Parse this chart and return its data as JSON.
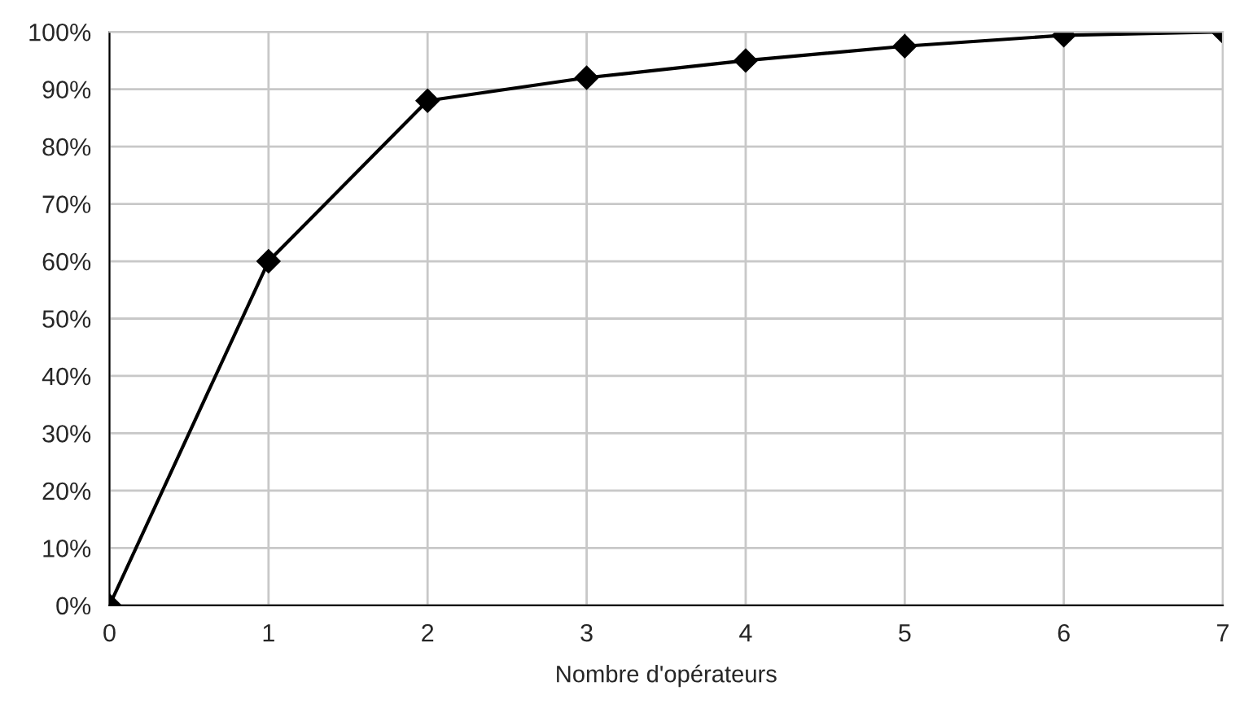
{
  "chart_data": {
    "type": "line",
    "xlabel": "Nombre d'opérateurs",
    "x": [
      0,
      1,
      2,
      3,
      4,
      5,
      6,
      7
    ],
    "series": [
      {
        "color": "#000000",
        "values": [
          0,
          60,
          88,
          92,
          95,
          97.5,
          99.4,
          100
        ]
      }
    ],
    "xlim": [
      0,
      7
    ],
    "xticks": [
      0,
      1,
      2,
      3,
      4,
      5,
      6,
      7
    ],
    "ylim": [
      0,
      100
    ],
    "yticks": [
      {
        "value": 0,
        "label": "0%"
      },
      {
        "value": 10,
        "label": "10%"
      },
      {
        "value": 20,
        "label": "20%"
      },
      {
        "value": 30,
        "label": "30%"
      },
      {
        "value": 40,
        "label": "40%"
      },
      {
        "value": 50,
        "label": "50%"
      },
      {
        "value": 60,
        "label": "60%"
      },
      {
        "value": 70,
        "label": "70%"
      },
      {
        "value": 80,
        "label": "80%"
      },
      {
        "value": 90,
        "label": "90%"
      },
      {
        "value": 100,
        "label": "100%"
      }
    ],
    "grid": true,
    "legend": false,
    "marker": "diamond",
    "line_style": "solid"
  }
}
